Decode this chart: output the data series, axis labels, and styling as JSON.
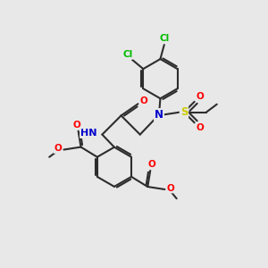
{
  "bg_color": "#e8e8e8",
  "bond_color": "#2d2d2d",
  "bond_width": 1.5,
  "atom_colors": {
    "C": "#2d2d2d",
    "N": "#0000cc",
    "O": "#ff0000",
    "S": "#cccc00",
    "Cl": "#00bb00",
    "H": "#888888"
  },
  "font_size": 7.5
}
